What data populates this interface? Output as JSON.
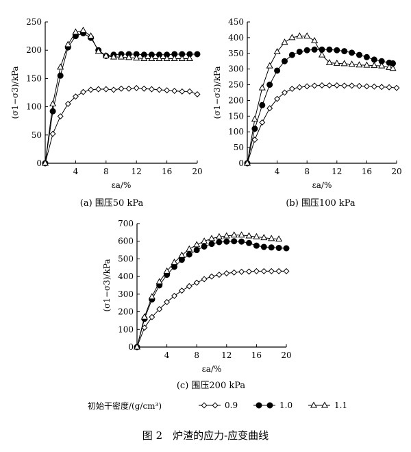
{
  "figure_caption": "图 2　炉渣的应力-应变曲线",
  "legend": {
    "title": "初始干密度/(g/cm³)",
    "items": [
      {
        "label": "0.9",
        "marker": "diamond-open"
      },
      {
        "label": "1.0",
        "marker": "circle-filled"
      },
      {
        "label": "1.1",
        "marker": "triangle-open"
      }
    ]
  },
  "chart_data": [
    {
      "type": "line",
      "caption": "(a) 围压50 kPa",
      "xlabel": "εa/%",
      "ylabel": "(σ1−σ3)/kPa",
      "xlim": [
        0,
        20
      ],
      "ylim": [
        0,
        250
      ],
      "xticks": [
        "4",
        "8",
        "12",
        "16",
        "20"
      ],
      "yticks": [
        "0",
        "50",
        "100",
        "150",
        "200",
        "250"
      ],
      "series": [
        {
          "name": "0.9",
          "marker": "diamond-open",
          "x": [
            0,
            1,
            2,
            3,
            4,
            5,
            6,
            7,
            8,
            9,
            10,
            11,
            12,
            13,
            14,
            15,
            16,
            17,
            18,
            19,
            20
          ],
          "y": [
            0,
            52,
            83,
            105,
            118,
            126,
            130,
            131,
            131,
            130,
            132,
            132,
            133,
            132,
            131,
            130,
            129,
            128,
            127,
            127,
            122
          ]
        },
        {
          "name": "1.0",
          "marker": "circle-filled",
          "x": [
            0,
            1,
            2,
            3,
            4,
            5,
            6,
            7,
            8,
            9,
            10,
            11,
            12,
            13,
            14,
            15,
            16,
            17,
            18,
            19,
            20
          ],
          "y": [
            0,
            92,
            155,
            205,
            225,
            230,
            222,
            200,
            190,
            192,
            193,
            193,
            193,
            192,
            192,
            192,
            192,
            193,
            193,
            193,
            193
          ]
        },
        {
          "name": "1.1",
          "marker": "triangle-open",
          "x": [
            0,
            1,
            2,
            3,
            4,
            5,
            6,
            7,
            8,
            9,
            10,
            11,
            12,
            13,
            14,
            15,
            16,
            17,
            18,
            19
          ],
          "y": [
            0,
            105,
            170,
            210,
            232,
            235,
            225,
            198,
            190,
            188,
            188,
            187,
            186,
            185,
            185,
            185,
            185,
            185,
            185,
            185
          ]
        }
      ]
    },
    {
      "type": "line",
      "caption": "(b) 围压100 kPa",
      "xlabel": "εa/%",
      "ylabel": "(σ1−σ3)/kPa",
      "xlim": [
        0,
        20
      ],
      "ylim": [
        0,
        450
      ],
      "xticks": [
        "4",
        "8",
        "12",
        "16",
        "20"
      ],
      "yticks": [
        "0",
        "50",
        "100",
        "150",
        "200",
        "250",
        "300",
        "350",
        "400",
        "450"
      ],
      "series": [
        {
          "name": "0.9",
          "marker": "diamond-open",
          "x": [
            0,
            1,
            2,
            3,
            4,
            5,
            6,
            7,
            8,
            9,
            10,
            11,
            12,
            13,
            14,
            15,
            16,
            17,
            18,
            19,
            20
          ],
          "y": [
            0,
            75,
            130,
            175,
            205,
            225,
            237,
            242,
            245,
            247,
            248,
            248,
            248,
            247,
            247,
            246,
            245,
            244,
            243,
            242,
            240
          ]
        },
        {
          "name": "1.0",
          "marker": "circle-filled",
          "x": [
            0,
            1,
            2,
            3,
            4,
            5,
            6,
            7,
            8,
            9,
            10,
            11,
            12,
            13,
            14,
            15,
            16,
            17,
            18,
            19,
            19.5
          ],
          "y": [
            0,
            110,
            185,
            250,
            295,
            325,
            345,
            355,
            360,
            362,
            362,
            362,
            360,
            357,
            352,
            345,
            338,
            330,
            325,
            320,
            318
          ]
        },
        {
          "name": "1.1",
          "marker": "triangle-open",
          "x": [
            0,
            1,
            2,
            3,
            4,
            5,
            6,
            7,
            8,
            9,
            10,
            11,
            12,
            13,
            14,
            15,
            16,
            17,
            18,
            19,
            19.5
          ],
          "y": [
            0,
            140,
            240,
            310,
            355,
            385,
            400,
            405,
            405,
            390,
            345,
            320,
            318,
            317,
            315,
            313,
            312,
            311,
            310,
            305,
            302
          ]
        }
      ]
    },
    {
      "type": "line",
      "caption": "(c) 围压200 kPa",
      "xlabel": "εa/%",
      "ylabel": "(σ1−σ3)/kPa",
      "xlim": [
        0,
        20
      ],
      "ylim": [
        0,
        700
      ],
      "xticks": [
        "4",
        "8",
        "12",
        "16",
        "20"
      ],
      "yticks": [
        "0",
        "100",
        "200",
        "300",
        "400",
        "500",
        "600",
        "700"
      ],
      "series": [
        {
          "name": "0.9",
          "marker": "diamond-open",
          "x": [
            0,
            1,
            2,
            3,
            4,
            5,
            6,
            7,
            8,
            9,
            10,
            11,
            12,
            13,
            14,
            15,
            16,
            17,
            18,
            19,
            20
          ],
          "y": [
            0,
            110,
            170,
            215,
            255,
            290,
            320,
            345,
            365,
            385,
            400,
            410,
            418,
            423,
            427,
            428,
            430,
            430,
            430,
            430,
            430
          ]
        },
        {
          "name": "1.0",
          "marker": "circle-filled",
          "x": [
            0,
            1,
            2,
            3,
            4,
            5,
            6,
            7,
            8,
            9,
            10,
            11,
            12,
            13,
            14,
            15,
            16,
            17,
            18,
            19,
            20
          ],
          "y": [
            0,
            160,
            270,
            350,
            410,
            455,
            495,
            525,
            550,
            570,
            585,
            595,
            598,
            600,
            598,
            590,
            575,
            568,
            565,
            562,
            560
          ]
        },
        {
          "name": "1.1",
          "marker": "triangle-open",
          "x": [
            0,
            1,
            2,
            3,
            4,
            5,
            6,
            7,
            8,
            9,
            10,
            11,
            12,
            13,
            14,
            15,
            16,
            17,
            18,
            19
          ],
          "y": [
            0,
            170,
            285,
            370,
            430,
            480,
            520,
            555,
            580,
            600,
            615,
            625,
            630,
            635,
            635,
            630,
            625,
            620,
            615,
            612
          ]
        }
      ]
    }
  ]
}
